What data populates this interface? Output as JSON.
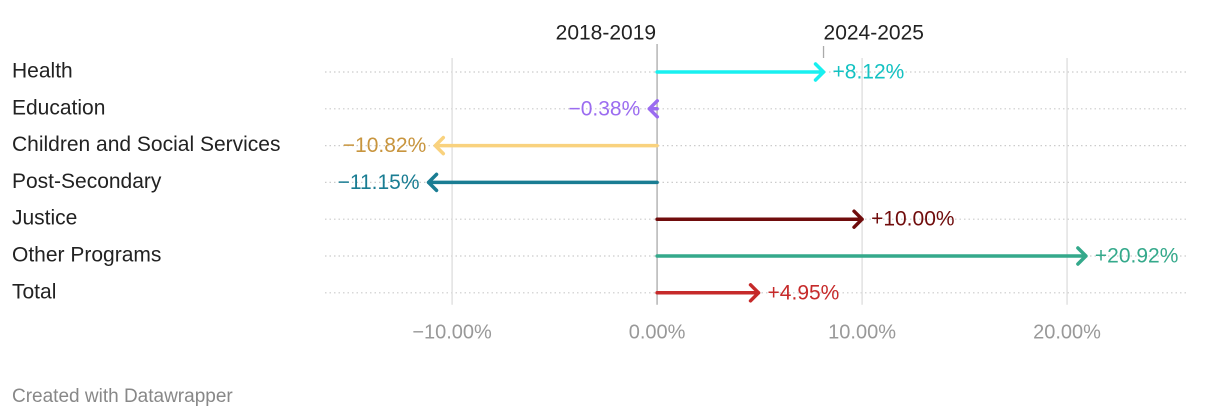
{
  "chart_data": {
    "type": "arrow",
    "start_label": "2018-2019",
    "end_label": "2024-2025",
    "categories": [
      "Health",
      "Education",
      "Children and Social Services",
      "Post-Secondary",
      "Justice",
      "Other Programs",
      "Total"
    ],
    "values": [
      8.12,
      -0.38,
      -10.82,
      -11.15,
      10.0,
      20.92,
      4.95
    ],
    "value_labels": [
      "+8.12%",
      "−0.38%",
      "−10.82%",
      "−11.15%",
      "+10.00%",
      "+20.92%",
      "+4.95%"
    ],
    "colors": [
      "#18f0f0",
      "#9b6cf0",
      "#f9d27e",
      "#1a7d93",
      "#700c0c",
      "#34a98b",
      "#c62a2a"
    ],
    "label_colors": [
      "#14c2c2",
      "#9b6cf0",
      "#c8953e",
      "#1a7d93",
      "#700c0c",
      "#34a98b",
      "#c62a2a"
    ],
    "xlim": [
      -16.2,
      25.9
    ],
    "xticks": [
      {
        "value": -10,
        "label": "−10.00%"
      },
      {
        "value": 0,
        "label": "0.00%"
      },
      {
        "value": 10,
        "label": "10.00%"
      },
      {
        "value": 20,
        "label": "20.00%"
      }
    ],
    "grid": true,
    "footer": "Created with Datawrapper"
  }
}
